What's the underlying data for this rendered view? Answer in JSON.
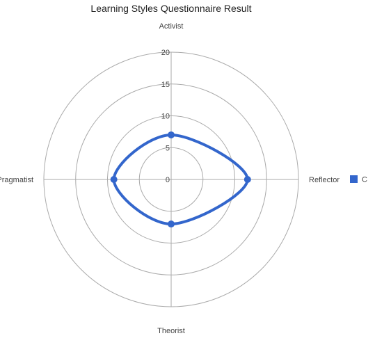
{
  "chart_data": {
    "type": "radar",
    "title": "Learning Styles Questionnaire Result",
    "axes": [
      "Activist",
      "Reflector",
      "Theorist",
      "Pragmatist"
    ],
    "radial_ticks": [
      "0",
      "5",
      "10",
      "15",
      "20"
    ],
    "rlim": [
      0,
      20
    ],
    "grid": true,
    "curve": "smooth",
    "legend_position": "right",
    "series": [
      {
        "name": "C",
        "values": [
          7,
          12,
          7,
          9
        ],
        "color": "#3366cc"
      }
    ]
  }
}
